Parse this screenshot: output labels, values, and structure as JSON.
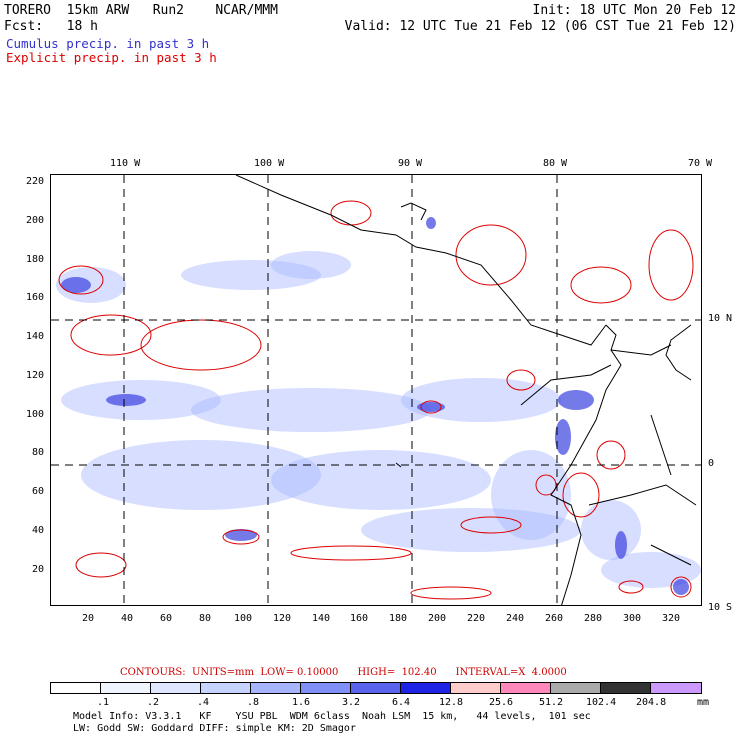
{
  "header": {
    "model": "TORERO  15km ARW   Run2    NCAR/MMM",
    "init": "Init: 18 UTC Mon 20 Feb 12",
    "fcst": "Fcst:   18 h",
    "valid": "Valid: 12 UTC Tue 21 Feb 12 (06 CST Tue 21 Feb 12)"
  },
  "legend": {
    "cumulus": "Cumulus precip. in past 3 h",
    "explicit": "Explicit precip. in past 3 h"
  },
  "map": {
    "top_lon_labels": [
      "110 W",
      "100 W",
      "90 W",
      "80 W",
      "70 W"
    ],
    "right_lat_labels": [
      "10 N",
      "0",
      "10 S"
    ],
    "left_y_labels": [
      "220",
      "200",
      "180",
      "160",
      "140",
      "120",
      "100",
      "80",
      "60",
      "40",
      "20"
    ],
    "bottom_x_labels": [
      "20",
      "40",
      "60",
      "80",
      "100",
      "120",
      "140",
      "160",
      "180",
      "200",
      "220",
      "240",
      "260",
      "280",
      "300",
      "320"
    ],
    "colors": {
      "cumulus": "#3333cc",
      "explicit": "#dd0000",
      "grid": "#000000",
      "coast": "#000000"
    }
  },
  "contours_info": "CONTOURS:  UNITS=mm  LOW= 0.10000      HIGH=  102.40      INTERVAL=X  4.0000",
  "colorbar": {
    "labels": [
      ".1",
      ".2",
      ".4",
      ".8",
      "1.6",
      "3.2",
      "6.4",
      "12.8",
      "25.6",
      "51.2",
      "102.4",
      "204.8"
    ],
    "unit": "mm",
    "colors": [
      "#ffffff",
      "#f0f4ff",
      "#dfe6ff",
      "#c6d2ff",
      "#a7b5ff",
      "#7f8ff5",
      "#5a63ee",
      "#1f23e6",
      "#ffcccc",
      "#ff88bb",
      "#aaaaaa",
      "#333333",
      "#cc99ff"
    ]
  },
  "model_info": {
    "line1": "Model Info: V3.3.1   KF    YSU PBL  WDM 6class  Noah LSM  15 km,   44 levels,  101 sec",
    "line2": "LW: Godd SW: Goddard DIFF: simple KM: 2D Smagor"
  }
}
